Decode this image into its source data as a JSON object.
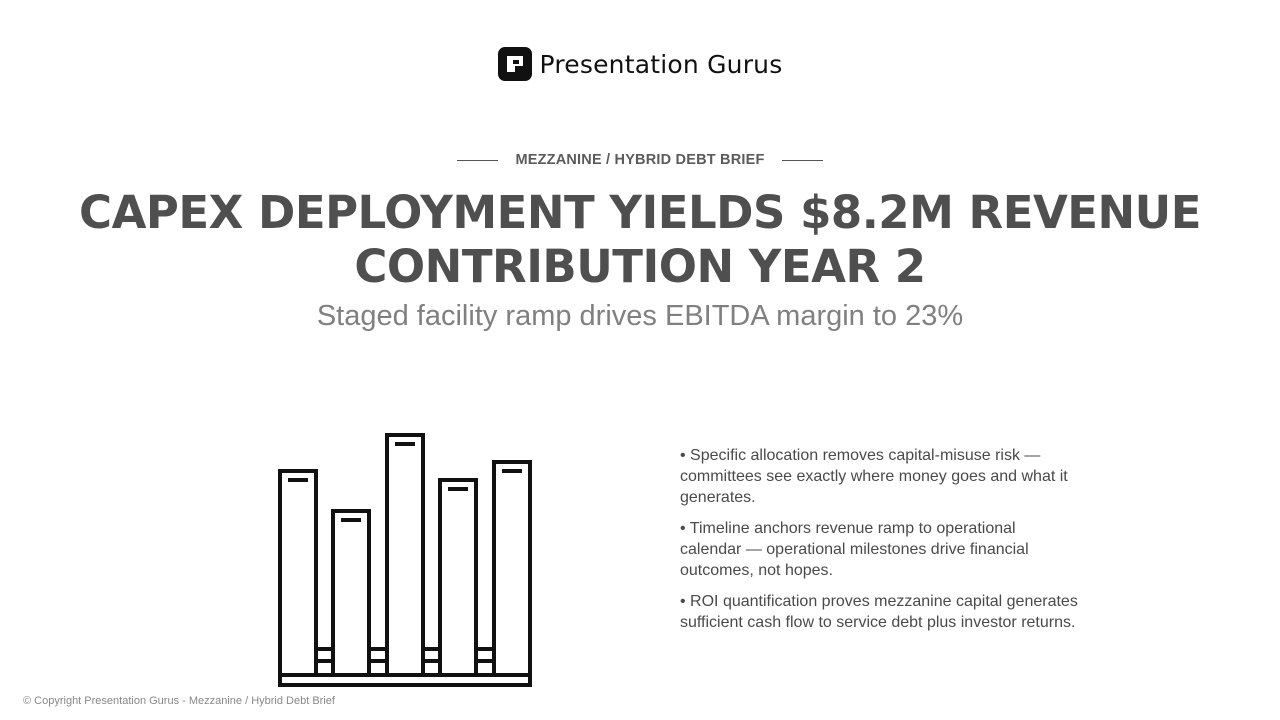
{
  "brand": {
    "name": "Presentation Gurus",
    "logo_icon": "presentation-gurus-logo-icon"
  },
  "slide": {
    "kicker": "MEZZANINE / HYBRID DEBT BRIEF",
    "title_line1": "CAPEX DEPLOYMENT YIELDS $8.2M REVENUE",
    "title_line2": "CONTRIBUTION YEAR 2",
    "subtitle": "Staged facility ramp drives EBITDA margin to 23%",
    "illustration_icon": "bar-chart-icon",
    "bullets": [
      "• Specific allocation removes capital-misuse risk — committees see exactly where money goes and what it generates.",
      "• Timeline anchors revenue ramp to operational calendar — operational milestones drive financial outcomes, not hopes.",
      "• ROI quantification proves mezzanine capital generates sufficient cash flow to service debt plus investor returns."
    ]
  },
  "footer": {
    "copyright": "© Copyright Presentation Gurus - Mezzanine / Hybrid Debt Brief"
  },
  "colors": {
    "title": "#4f4f4f",
    "subtitle": "#808080",
    "body_text": "#4a4a4a",
    "icon": "#111111"
  }
}
